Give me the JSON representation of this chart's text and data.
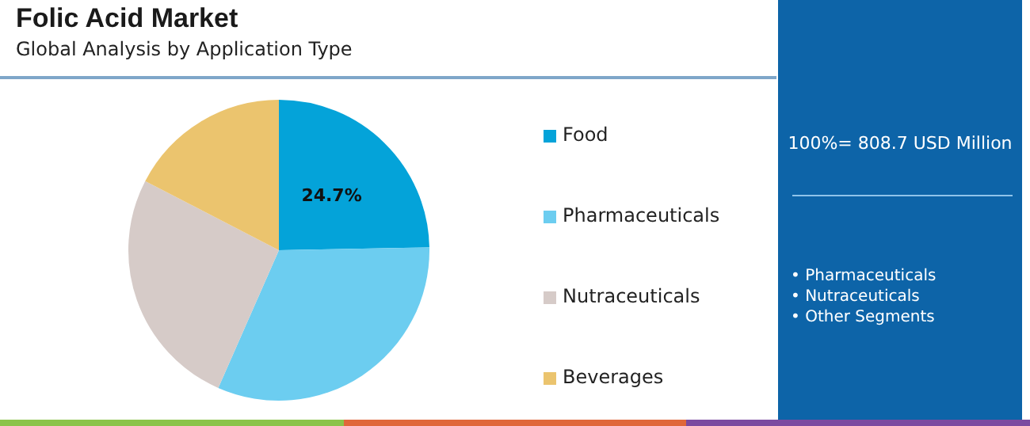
{
  "chart_data": {
    "type": "pie",
    "title": "Folic Acid Market",
    "subtitle": "Global Analysis by Application Type",
    "categories": [
      "Food",
      "Pharmaceuticals",
      "Nutraceuticals",
      "Beverages"
    ],
    "values": [
      24.7,
      31.9,
      26.0,
      17.4
    ],
    "colors": [
      "#04a3d9",
      "#6ccdf0",
      "#d6cbc8",
      "#ebc46e"
    ],
    "value_labels": [
      "24.7%",
      null,
      null,
      null
    ],
    "legend": "right",
    "annotations": [
      "100%= 808.7 USD Million",
      "• Pharmaceuticals",
      "• Nutraceuticals",
      "• Other Segments"
    ]
  }
}
